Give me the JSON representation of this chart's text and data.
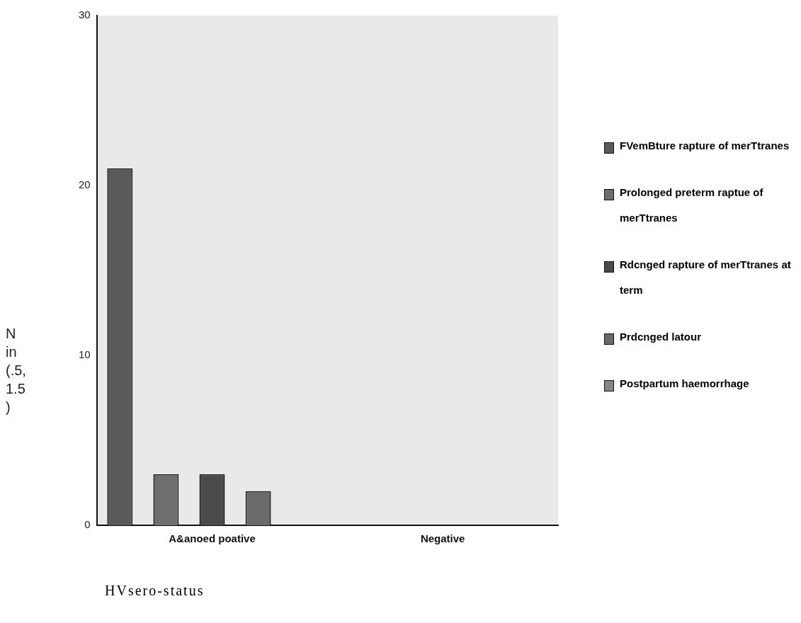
{
  "chart_data": {
    "type": "bar",
    "xlabel": "HVsero-status",
    "ylabel": "N in (.5, 1.5 )",
    "categories": [
      "A&anoed poative",
      "Negative"
    ],
    "series": [
      {
        "name": "FVemBture rapture of merTtranes",
        "color": "#5a5a5a",
        "values": [
          21,
          null
        ]
      },
      {
        "name": "Prolonged preterm raptue of merTtranes",
        "color": "#6e6e6e",
        "values": [
          3,
          null
        ]
      },
      {
        "name": "Rdcnged rapture of merTtranes at term",
        "color": "#4a4a4a",
        "values": [
          3,
          null
        ]
      },
      {
        "name": "Prdcnged latour",
        "color": "#6a6a6a",
        "values": [
          2,
          null
        ]
      },
      {
        "name": "Postpartum haemorrhage",
        "color": "#858585",
        "values": [
          null,
          null
        ]
      }
    ],
    "ylim": [
      0,
      30
    ],
    "yticks": [
      0,
      10,
      20,
      30
    ],
    "grid": false,
    "legend": "right"
  }
}
